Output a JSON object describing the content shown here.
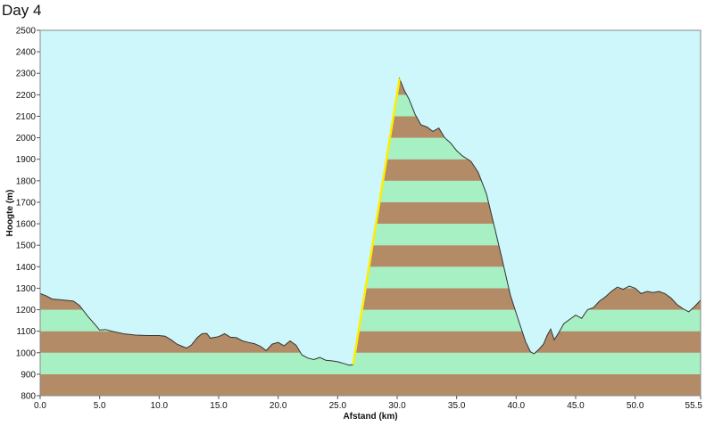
{
  "page_title": "Day 4",
  "chart_data": {
    "type": "area",
    "xlabel": "Afstand  (km)",
    "ylabel": "Hoogte (m)",
    "xlim": [
      0,
      55.5
    ],
    "ylim": [
      800,
      2500
    ],
    "x_ticks": [
      "0.0",
      "5.0",
      "10.0",
      "15.0",
      "20.0",
      "25.0",
      "30.0",
      "35.0",
      "40.0",
      "45.0",
      "50.0",
      "55.5"
    ],
    "x_tick_values": [
      0,
      5,
      10,
      15,
      20,
      25,
      30,
      35,
      40,
      45,
      50,
      55.5
    ],
    "y_ticks": [
      "800",
      "900",
      "1000",
      "1100",
      "1200",
      "1300",
      "1400",
      "1500",
      "1600",
      "1700",
      "1800",
      "1900",
      "2000",
      "2100",
      "2200",
      "2300",
      "2400",
      "2500"
    ],
    "y_tick_values": [
      800,
      900,
      1000,
      1100,
      1200,
      1300,
      1400,
      1500,
      1600,
      1700,
      1800,
      1900,
      2000,
      2100,
      2200,
      2300,
      2400,
      2500
    ],
    "band_colors": [
      "#b38b66",
      "#a6f0c4"
    ],
    "plot_background": "#cdf7fb",
    "grid": false,
    "highlight_color": "#ffee00",
    "highlight_segment": [
      [
        26.3,
        945
      ],
      [
        30.2,
        2275
      ]
    ],
    "profile": [
      [
        0,
        1275
      ],
      [
        0.5,
        1265
      ],
      [
        1,
        1250
      ],
      [
        2,
        1245
      ],
      [
        2.8,
        1240
      ],
      [
        3.3,
        1220
      ],
      [
        4,
        1170
      ],
      [
        4.7,
        1125
      ],
      [
        5,
        1105
      ],
      [
        5.5,
        1108
      ],
      [
        6,
        1100
      ],
      [
        7,
        1088
      ],
      [
        8,
        1082
      ],
      [
        9,
        1080
      ],
      [
        10,
        1080
      ],
      [
        10.5,
        1077
      ],
      [
        11,
        1060
      ],
      [
        11.5,
        1040
      ],
      [
        12,
        1028
      ],
      [
        12.3,
        1022
      ],
      [
        12.7,
        1035
      ],
      [
        13.2,
        1070
      ],
      [
        13.6,
        1088
      ],
      [
        14,
        1090
      ],
      [
        14.3,
        1068
      ],
      [
        15,
        1075
      ],
      [
        15.5,
        1088
      ],
      [
        16,
        1072
      ],
      [
        16.5,
        1070
      ],
      [
        17,
        1055
      ],
      [
        17.5,
        1048
      ],
      [
        18,
        1042
      ],
      [
        18.5,
        1030
      ],
      [
        19,
        1010
      ],
      [
        19.5,
        1040
      ],
      [
        20,
        1048
      ],
      [
        20.5,
        1032
      ],
      [
        21,
        1055
      ],
      [
        21.5,
        1035
      ],
      [
        22,
        990
      ],
      [
        22.5,
        975
      ],
      [
        23,
        968
      ],
      [
        23.5,
        978
      ],
      [
        24,
        965
      ],
      [
        24.5,
        962
      ],
      [
        25,
        958
      ],
      [
        25.5,
        950
      ],
      [
        26,
        942
      ],
      [
        26.3,
        945
      ],
      [
        30.2,
        2275
      ],
      [
        30.6,
        2220
      ],
      [
        31,
        2180
      ],
      [
        31.5,
        2110
      ],
      [
        32,
        2060
      ],
      [
        32.5,
        2050
      ],
      [
        33,
        2030
      ],
      [
        33.5,
        2045
      ],
      [
        34,
        2000
      ],
      [
        34.5,
        1975
      ],
      [
        35,
        1940
      ],
      [
        35.5,
        1915
      ],
      [
        36.2,
        1890
      ],
      [
        36.8,
        1840
      ],
      [
        37.5,
        1740
      ],
      [
        38.2,
        1580
      ],
      [
        38.8,
        1440
      ],
      [
        39.5,
        1270
      ],
      [
        40.2,
        1150
      ],
      [
        40.8,
        1050
      ],
      [
        41.2,
        1005
      ],
      [
        41.5,
        995
      ],
      [
        41.9,
        1015
      ],
      [
        42.3,
        1040
      ],
      [
        42.6,
        1080
      ],
      [
        42.9,
        1110
      ],
      [
        43.2,
        1060
      ],
      [
        43.6,
        1095
      ],
      [
        44,
        1135
      ],
      [
        44.5,
        1155
      ],
      [
        45,
        1175
      ],
      [
        45.5,
        1160
      ],
      [
        46,
        1200
      ],
      [
        46.5,
        1210
      ],
      [
        47,
        1240
      ],
      [
        47.5,
        1260
      ],
      [
        48,
        1285
      ],
      [
        48.5,
        1305
      ],
      [
        49,
        1295
      ],
      [
        49.5,
        1310
      ],
      [
        50,
        1300
      ],
      [
        50.5,
        1275
      ],
      [
        51,
        1285
      ],
      [
        51.5,
        1280
      ],
      [
        52,
        1285
      ],
      [
        52.5,
        1275
      ],
      [
        53,
        1255
      ],
      [
        53.5,
        1225
      ],
      [
        54,
        1205
      ],
      [
        54.5,
        1190
      ],
      [
        55,
        1215
      ],
      [
        55.5,
        1245
      ]
    ]
  }
}
